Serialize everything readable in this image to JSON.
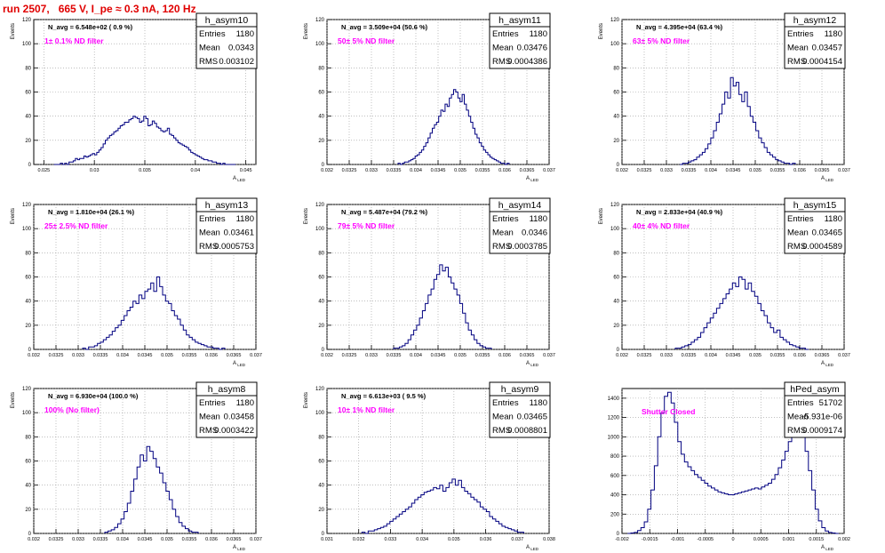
{
  "header": {
    "title": "run 2507,   665 V, I_pe ≈ 0.3 nA, 120 Hz"
  },
  "chart_data": [
    {
      "type": "bar",
      "panel_title": "h_asym10",
      "stats": {
        "entries": "1180",
        "mean": "0.0343",
        "rms": "0.003102"
      },
      "navg_label": "N_avg = 6.548e+02 ( 0.9 %)",
      "filter_label": "1± 0.1% ND filter",
      "xlabel": "A_{LED}",
      "ylabel": "Events",
      "xlim": [
        0.024,
        0.046
      ],
      "ylim": [
        0,
        120
      ],
      "xticks": [
        "0.025",
        "0.03",
        "0.035",
        "0.04",
        "0.045"
      ],
      "xtickvals": [
        0.025,
        0.03,
        0.035,
        0.04,
        0.045
      ],
      "yticks": [
        "0",
        "20",
        "40",
        "60",
        "80",
        "100",
        "120"
      ],
      "bin_range": [
        0.026,
        0.044
      ],
      "values": [
        0,
        0,
        0,
        1,
        0,
        1,
        0,
        2,
        2,
        3,
        5,
        4,
        5,
        5,
        7,
        6,
        7,
        8,
        9,
        8,
        10,
        12,
        14,
        17,
        20,
        22,
        24,
        25,
        27,
        28,
        30,
        32,
        33,
        35,
        35,
        37,
        38,
        40,
        39,
        38,
        35,
        36,
        40,
        38,
        32,
        33,
        36,
        34,
        31,
        30,
        28,
        27,
        28,
        30,
        25,
        24,
        22,
        20,
        18,
        17,
        16,
        15,
        14,
        12,
        10,
        9,
        8,
        7,
        6,
        5,
        4,
        4,
        3,
        3,
        2,
        2,
        1,
        1,
        0,
        1,
        0,
        0,
        0,
        0,
        0
      ]
    },
    {
      "type": "bar",
      "panel_title": "h_asym11",
      "stats": {
        "entries": "1180",
        "mean": "0.03476",
        "rms": "0.0004386"
      },
      "navg_label": "N_avg = 3.509e+04 (50.6 %)",
      "filter_label": "50± 5% ND filter",
      "xlabel": "A_{LED}",
      "ylabel": "Events",
      "xlim": [
        0.032,
        0.037
      ],
      "ylim": [
        0,
        120
      ],
      "xticks": [
        "0.032",
        "0.0325",
        "0.033",
        "0.0335",
        "0.034",
        "0.0345",
        "0.035",
        "0.0355",
        "0.036",
        "0.0365",
        "0.037"
      ],
      "xtickvals": [
        0.032,
        0.0325,
        0.033,
        0.0335,
        0.034,
        0.0345,
        0.035,
        0.0355,
        0.036,
        0.0365,
        0.037
      ],
      "yticks": [
        "0",
        "20",
        "40",
        "60",
        "80",
        "100",
        "120"
      ],
      "bin_range": [
        0.0336,
        0.0361
      ],
      "values": [
        1,
        0,
        1,
        2,
        2,
        3,
        4,
        5,
        7,
        8,
        10,
        12,
        15,
        18,
        22,
        26,
        30,
        33,
        35,
        40,
        45,
        44,
        50,
        48,
        55,
        58,
        62,
        60,
        55,
        52,
        58,
        50,
        45,
        40,
        35,
        30,
        25,
        22,
        18,
        15,
        12,
        10,
        8,
        6,
        5,
        4,
        3,
        2,
        1,
        1,
        0,
        1
      ]
    },
    {
      "type": "bar",
      "panel_title": "h_asym12",
      "stats": {
        "entries": "1180",
        "mean": "0.03457",
        "rms": "0.0004154"
      },
      "navg_label": "N_avg = 4.395e+04 (63.4 %)",
      "filter_label": "63± 5% ND filter",
      "xlabel": "A_{LED}",
      "ylabel": "Events",
      "xlim": [
        0.032,
        0.037
      ],
      "ylim": [
        0,
        120
      ],
      "xticks": [
        "0.032",
        "0.0325",
        "0.033",
        "0.0335",
        "0.034",
        "0.0345",
        "0.035",
        "0.0355",
        "0.036",
        "0.0365",
        "0.037"
      ],
      "xtickvals": [
        0.032,
        0.0325,
        0.033,
        0.0335,
        0.034,
        0.0345,
        0.035,
        0.0355,
        0.036,
        0.0365,
        0.037
      ],
      "yticks": [
        "0",
        "20",
        "40",
        "60",
        "80",
        "100",
        "120"
      ],
      "bin_range": [
        0.0333,
        0.0359
      ],
      "values": [
        0,
        1,
        1,
        2,
        3,
        4,
        6,
        8,
        10,
        13,
        17,
        22,
        28,
        35,
        42,
        50,
        60,
        55,
        72,
        65,
        68,
        58,
        52,
        60,
        48,
        40,
        35,
        28,
        22,
        18,
        14,
        10,
        8,
        6,
        4,
        3,
        2,
        1,
        1,
        0,
        1
      ]
    },
    {
      "type": "bar",
      "panel_title": "h_asym13",
      "stats": {
        "entries": "1180",
        "mean": "0.03461",
        "rms": "0.0005753"
      },
      "navg_label": "N_avg = 1.810e+04 (26.1 %)",
      "filter_label": "25± 2.5% ND filter",
      "xlabel": "A_{LED}",
      "ylabel": "Events",
      "xlim": [
        0.032,
        0.037
      ],
      "ylim": [
        0,
        120
      ],
      "xticks": [
        "0.032",
        "0.0325",
        "0.033",
        "0.0335",
        "0.034",
        "0.0345",
        "0.035",
        "0.0355",
        "0.036",
        "0.0365",
        "0.037"
      ],
      "xtickvals": [
        0.032,
        0.0325,
        0.033,
        0.0335,
        0.034,
        0.0345,
        0.035,
        0.0355,
        0.036,
        0.0365,
        0.037
      ],
      "yticks": [
        "0",
        "20",
        "40",
        "60",
        "80",
        "100",
        "120"
      ],
      "bin_range": [
        0.0331,
        0.0363
      ],
      "values": [
        1,
        0,
        2,
        2,
        3,
        5,
        6,
        8,
        10,
        12,
        15,
        18,
        20,
        24,
        28,
        32,
        35,
        40,
        38,
        45,
        42,
        48,
        50,
        55,
        48,
        60,
        52,
        45,
        40,
        38,
        32,
        28,
        25,
        20,
        16,
        12,
        10,
        8,
        6,
        5,
        4,
        3,
        2,
        2,
        1,
        1,
        0,
        1
      ]
    },
    {
      "type": "bar",
      "panel_title": "h_asym14",
      "stats": {
        "entries": "1180",
        "mean": "0.0346",
        "rms": "0.0003785"
      },
      "navg_label": "N_avg = 5.487e+04 (79.2 %)",
      "filter_label": "79± 5% ND filter",
      "xlabel": "A_{LED}",
      "ylabel": "Events",
      "xlim": [
        0.032,
        0.037
      ],
      "ylim": [
        0,
        120
      ],
      "xticks": [
        "0.032",
        "0.0325",
        "0.033",
        "0.0335",
        "0.034",
        "0.0345",
        "0.035",
        "0.0355",
        "0.036",
        "0.0365",
        "0.037"
      ],
      "xtickvals": [
        0.032,
        0.0325,
        0.033,
        0.0335,
        0.034,
        0.0345,
        0.035,
        0.0355,
        0.036,
        0.0365,
        0.037
      ],
      "yticks": [
        "0",
        "20",
        "40",
        "60",
        "80",
        "100",
        "120"
      ],
      "bin_range": [
        0.0335,
        0.0357
      ],
      "values": [
        1,
        1,
        2,
        3,
        5,
        8,
        12,
        16,
        20,
        26,
        32,
        38,
        45,
        50,
        58,
        62,
        70,
        65,
        68,
        60,
        55,
        50,
        45,
        38,
        30,
        22,
        16,
        12,
        8,
        5,
        3,
        2,
        1,
        1
      ]
    },
    {
      "type": "bar",
      "panel_title": "h_asym15",
      "stats": {
        "entries": "1180",
        "mean": "0.03465",
        "rms": "0.0004589"
      },
      "navg_label": "N_avg = 2.833e+04 (40.9 %)",
      "filter_label": "40± 4% ND filter",
      "xlabel": "A_{LED}",
      "ylabel": "Events",
      "xlim": [
        0.032,
        0.037
      ],
      "ylim": [
        0,
        120
      ],
      "xticks": [
        "0.032",
        "0.0325",
        "0.033",
        "0.0335",
        "0.034",
        "0.0345",
        "0.035",
        "0.0355",
        "0.036",
        "0.0365",
        "0.037"
      ],
      "xtickvals": [
        0.032,
        0.0325,
        0.033,
        0.0335,
        0.034,
        0.0345,
        0.035,
        0.0355,
        0.036,
        0.0365,
        0.037
      ],
      "yticks": [
        "0",
        "20",
        "40",
        "60",
        "80",
        "100",
        "120"
      ],
      "bin_range": [
        0.0332,
        0.0362
      ],
      "values": [
        1,
        1,
        2,
        3,
        4,
        6,
        8,
        10,
        14,
        18,
        22,
        26,
        30,
        34,
        38,
        42,
        46,
        50,
        55,
        52,
        60,
        58,
        50,
        55,
        48,
        44,
        38,
        32,
        28,
        22,
        18,
        14,
        16,
        10,
        8,
        6,
        4,
        3,
        2,
        1,
        1,
        0
      ]
    },
    {
      "type": "bar",
      "panel_title": "h_asym8",
      "stats": {
        "entries": "1180",
        "mean": "0.03458",
        "rms": "0.0003422"
      },
      "navg_label": "N_avg = 6.930e+04 (100.0 %)",
      "filter_label": "100% (No filter)",
      "xlabel": "A_{LED}",
      "ylabel": "Events",
      "xlim": [
        0.032,
        0.037
      ],
      "ylim": [
        0,
        120
      ],
      "xticks": [
        "0.032",
        "0.0325",
        "0.033",
        "0.0335",
        "0.034",
        "0.0345",
        "0.035",
        "0.0355",
        "0.036",
        "0.0365",
        "0.037"
      ],
      "xtickvals": [
        0.032,
        0.0325,
        0.033,
        0.0335,
        0.034,
        0.0345,
        0.035,
        0.0355,
        0.036,
        0.0365,
        0.037
      ],
      "yticks": [
        "0",
        "20",
        "40",
        "60",
        "80",
        "100",
        "120"
      ],
      "bin_range": [
        0.0336,
        0.0357
      ],
      "values": [
        1,
        2,
        3,
        5,
        8,
        12,
        18,
        25,
        35,
        45,
        55,
        65,
        60,
        72,
        68,
        62,
        55,
        50,
        42,
        35,
        28,
        20,
        14,
        9,
        6,
        4,
        2,
        1,
        1
      ]
    },
    {
      "type": "bar",
      "panel_title": "h_asym9",
      "stats": {
        "entries": "1180",
        "mean": "0.03465",
        "rms": "0.0008801"
      },
      "navg_label": "N_avg = 6.613e+03 ( 9.5 %)",
      "filter_label": "10± 1% ND filter",
      "xlabel": "A_{LED}",
      "ylabel": "Events",
      "xlim": [
        0.031,
        0.038
      ],
      "ylim": [
        0,
        120
      ],
      "xticks": [
        "0.031",
        "0.032",
        "0.033",
        "0.034",
        "0.035",
        "0.036",
        "0.037",
        "0.038"
      ],
      "xtickvals": [
        0.031,
        0.032,
        0.033,
        0.034,
        0.035,
        0.036,
        0.037,
        0.038
      ],
      "yticks": [
        "0",
        "20",
        "40",
        "60",
        "80",
        "100",
        "120"
      ],
      "bin_range": [
        0.0321,
        0.0372
      ],
      "values": [
        1,
        0,
        2,
        2,
        3,
        4,
        5,
        6,
        8,
        10,
        12,
        14,
        16,
        18,
        20,
        22,
        25,
        28,
        30,
        32,
        34,
        35,
        36,
        38,
        37,
        40,
        35,
        38,
        42,
        45,
        40,
        44,
        38,
        35,
        33,
        30,
        28,
        26,
        22,
        20,
        18,
        14,
        12,
        10,
        8,
        6,
        5,
        4,
        3,
        2,
        1,
        1
      ]
    },
    {
      "type": "bar",
      "panel_title": "hPed_asym",
      "stats": {
        "entries": "51702",
        "mean": "-5.931e-06",
        "rms": "0.0009174"
      },
      "navg_label": "",
      "filter_label": "Shutter Closed",
      "xlabel": "A_{LED}",
      "ylabel": "",
      "xlim": [
        -0.002,
        0.002
      ],
      "ylim": [
        0,
        1500
      ],
      "xticks": [
        "-0.002",
        "-0.0015",
        "-0.001",
        "-0.0005",
        "0",
        "0.0005",
        "0.001",
        "0.0015",
        "0.002"
      ],
      "xtickvals": [
        -0.002,
        -0.0015,
        -0.001,
        -0.0005,
        0,
        0.0005,
        0.001,
        0.0015,
        0.002
      ],
      "yticks": [
        "0",
        "200",
        "400",
        "600",
        "800",
        "1000",
        "1200",
        "1400"
      ],
      "ytickvals": [
        0,
        200,
        400,
        600,
        800,
        1000,
        1200,
        1400
      ],
      "bin_range": [
        -0.0019,
        0.0019
      ],
      "values": [
        0,
        5,
        10,
        30,
        60,
        120,
        250,
        450,
        700,
        1000,
        1250,
        1420,
        1460,
        1350,
        1150,
        950,
        820,
        740,
        690,
        650,
        610,
        580,
        550,
        520,
        490,
        470,
        450,
        430,
        420,
        410,
        400,
        400,
        410,
        420,
        430,
        440,
        450,
        460,
        470,
        460,
        480,
        500,
        520,
        560,
        610,
        680,
        760,
        850,
        950,
        1050,
        1120,
        1100,
        1000,
        850,
        650,
        450,
        250,
        130,
        60,
        25,
        10,
        5,
        0
      ]
    }
  ]
}
